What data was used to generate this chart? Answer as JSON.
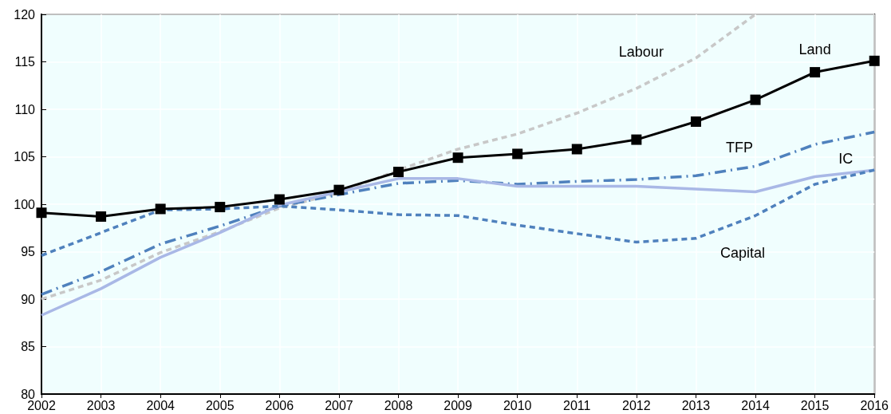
{
  "chart_data": {
    "type": "line",
    "categories": [
      "2002",
      "2003",
      "2004",
      "2005",
      "2006",
      "2007",
      "2008",
      "2009",
      "2010",
      "2011",
      "2012",
      "2013",
      "2014",
      "2015",
      "2016"
    ],
    "ylim": [
      80,
      120
    ],
    "yticks": [
      80,
      85,
      90,
      95,
      100,
      105,
      110,
      115,
      120
    ],
    "grid": true,
    "legend": false,
    "series": [
      {
        "name": "Labour",
        "color": "#c8c8c8",
        "line_style": "dashed",
        "marker": "none",
        "values": [
          90,
          92,
          94.9,
          97.1,
          99.6,
          101.2,
          103.6,
          105.8,
          107.4,
          109.6,
          112.2,
          115.4,
          120,
          null,
          null
        ]
      },
      {
        "name": "Land",
        "color": "#000000",
        "line_style": "solid",
        "marker": "square",
        "values": [
          99.1,
          98.7,
          99.5,
          99.7,
          100.5,
          101.5,
          103.4,
          104.9,
          105.3,
          105.8,
          106.8,
          108.7,
          111.0,
          113.9,
          115.1
        ]
      },
      {
        "name": "TFP",
        "color": "#4f81bd",
        "line_style": "dashdot",
        "marker": "none",
        "values": [
          90.5,
          92.9,
          95.8,
          97.7,
          99.8,
          101.0,
          102.2,
          102.5,
          102.1,
          102.4,
          102.6,
          103.0,
          104.0,
          106.3,
          107.6
        ]
      },
      {
        "name": "IC",
        "color": "#a9b8e6",
        "line_style": "solid",
        "marker": "none",
        "values": [
          88.3,
          91.1,
          94.4,
          97.0,
          99.9,
          101.3,
          102.7,
          102.7,
          101.9,
          101.9,
          101.9,
          101.6,
          101.3,
          102.9,
          103.6
        ]
      },
      {
        "name": "Capital",
        "color": "#4f81bd",
        "line_style": "dashed",
        "marker": "none",
        "values": [
          94.6,
          97.0,
          99.4,
          99.5,
          99.8,
          99.4,
          98.9,
          98.8,
          97.8,
          96.9,
          96.0,
          96.4,
          98.8,
          102.1,
          103.6
        ]
      }
    ]
  }
}
